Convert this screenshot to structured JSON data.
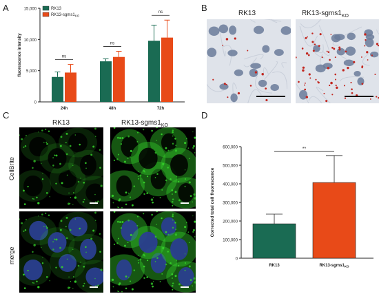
{
  "panels": {
    "a": "A",
    "b": "B",
    "c": "C",
    "d": "D"
  },
  "colors": {
    "teal": "#1a6b53",
    "red": "#e84a18",
    "axis": "#222222",
    "confocal_green": "#35d02a",
    "nucleus_blue": "#2a3f8f",
    "histology_bg": "#dfe3ea",
    "histology_nucleus": "#6b7b9a",
    "histology_dot": "#c2261f"
  },
  "panel_b": {
    "label_left": "RK13",
    "label_right_base": "RK13-sgms1",
    "label_right_sub": "KO"
  },
  "panel_c": {
    "label_left": "RK13",
    "label_right_base": "RK13-sgms1",
    "label_right_sub": "KO",
    "row_top": "CellBrite",
    "row_bottom": "merge"
  },
  "chart_data": [
    {
      "type": "bar",
      "title": "",
      "ylabel": "fluorescence intensity",
      "xlabel": "",
      "categories": [
        "24h",
        "48h",
        "72h"
      ],
      "ylim": [
        0,
        15000
      ],
      "yticks": [
        "0",
        "5,000",
        "10,000",
        "15,000"
      ],
      "legend_position": "top-left",
      "series": [
        {
          "name": "RK13",
          "color": "#1a6b53",
          "values": [
            4000,
            6500,
            9800
          ],
          "errors": [
            800,
            400,
            2500
          ]
        },
        {
          "name": "RK13-sgms1",
          "name_sub": "KO",
          "color": "#e84a18",
          "values": [
            4700,
            7200,
            10300
          ],
          "errors": [
            1300,
            900,
            2800
          ]
        }
      ],
      "significance": [
        {
          "group": "24h",
          "label": "ns"
        },
        {
          "group": "48h",
          "label": "ns"
        },
        {
          "group": "72h",
          "label": "ns"
        }
      ]
    },
    {
      "type": "bar",
      "title": "",
      "ylabel": "Corrected total cell fluorescence",
      "xlabel": "",
      "categories": [
        "RK13",
        "RK13-sgms1"
      ],
      "category_subs": [
        "",
        "KO"
      ],
      "ylim": [
        0,
        600000
      ],
      "yticks": [
        "0",
        "100,000",
        "200,000",
        "300,000",
        "400,000",
        "500,000",
        "600,000"
      ],
      "series": [
        {
          "name": "",
          "values": [
            185000,
            407000
          ],
          "errors": [
            52000,
            145000
          ],
          "colors": [
            "#1a6b53",
            "#e84a18"
          ]
        }
      ],
      "significance": [
        {
          "between": [
            "RK13",
            "RK13-sgms1"
          ],
          "label": "**"
        }
      ]
    }
  ]
}
